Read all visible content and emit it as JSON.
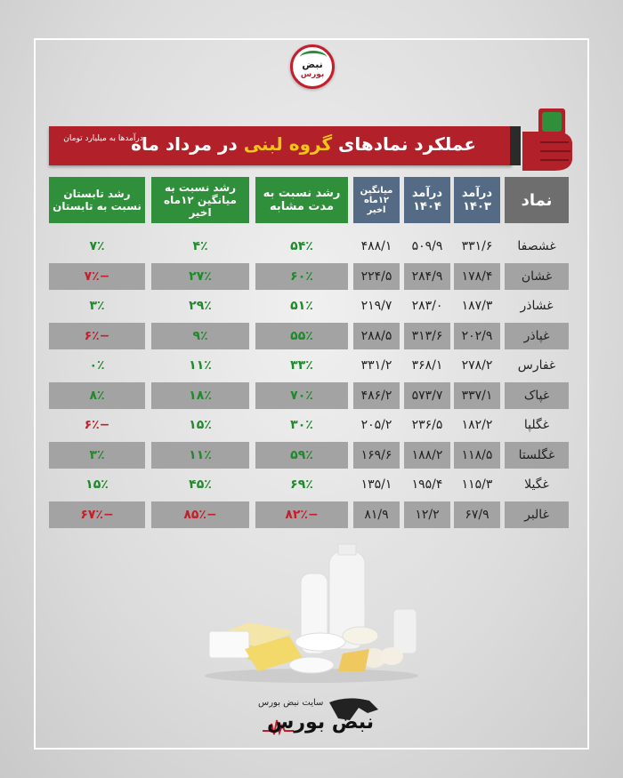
{
  "logo": {
    "line1": "نبض",
    "line2": "بورس"
  },
  "banner": {
    "title_before": "عملکرد نمادهای ",
    "title_highlight": "گروه لبنی",
    "title_after": " در مرداد ماه",
    "note": "درآمدها به میلیارد تومان"
  },
  "headers": {
    "symbol": "نماد",
    "income_1403": "درآمد\n۱۴۰۳",
    "income_1404": "درآمد\n۱۴۰۴",
    "avg_12": "میانگین\n۱۲ماه اخیر",
    "growth_same": "رشد نسبت به\nمدت مشابه",
    "growth_avg": "رشد نسبت به\nمیانگین ۱۲ماه اخیر",
    "growth_summer": "رشد تابستان\nنسبت به تابستان"
  },
  "rows": [
    {
      "symbol": "غشصفا",
      "inc1403": "۳۳۱/۶",
      "inc1404": "۵۰۹/۹",
      "avg": "۴۸۸/۱",
      "g_same": "۵۴٪",
      "g_avg": "۴٪",
      "g_summer": "۷٪",
      "summer_neg": false,
      "avg_neg": false,
      "same_neg": false
    },
    {
      "symbol": "غشان",
      "inc1403": "۱۷۸/۴",
      "inc1404": "۲۸۴/۹",
      "avg": "۲۲۴/۵",
      "g_same": "۶۰٪",
      "g_avg": "۲۷٪",
      "g_summer": "−۷٪",
      "summer_neg": true,
      "avg_neg": false,
      "same_neg": false
    },
    {
      "symbol": "غشاذر",
      "inc1403": "۱۸۷/۳",
      "inc1404": "۲۸۳/۰",
      "avg": "۲۱۹/۷",
      "g_same": "۵۱٪",
      "g_avg": "۲۹٪",
      "g_summer": "۳٪",
      "summer_neg": false,
      "avg_neg": false,
      "same_neg": false
    },
    {
      "symbol": "غپاذر",
      "inc1403": "۲۰۲/۹",
      "inc1404": "۳۱۳/۶",
      "avg": "۲۸۸/۵",
      "g_same": "۵۵٪",
      "g_avg": "۹٪",
      "g_summer": "−۶٪",
      "summer_neg": true,
      "avg_neg": false,
      "same_neg": false
    },
    {
      "symbol": "غفارس",
      "inc1403": "۲۷۸/۲",
      "inc1404": "۳۶۸/۱",
      "avg": "۳۳۱/۲",
      "g_same": "۳۳٪",
      "g_avg": "۱۱٪",
      "g_summer": "۰٪",
      "summer_neg": false,
      "avg_neg": false,
      "same_neg": false
    },
    {
      "symbol": "غپاک",
      "inc1403": "۳۳۷/۱",
      "inc1404": "۵۷۳/۷",
      "avg": "۴۸۶/۲",
      "g_same": "۷۰٪",
      "g_avg": "۱۸٪",
      "g_summer": "۸٪",
      "summer_neg": false,
      "avg_neg": false,
      "same_neg": false
    },
    {
      "symbol": "غگلپا",
      "inc1403": "۱۸۲/۲",
      "inc1404": "۲۳۶/۵",
      "avg": "۲۰۵/۲",
      "g_same": "۳۰٪",
      "g_avg": "۱۵٪",
      "g_summer": "−۶٪",
      "summer_neg": true,
      "avg_neg": false,
      "same_neg": false
    },
    {
      "symbol": "غگلستا",
      "inc1403": "۱۱۸/۵",
      "inc1404": "۱۸۸/۲",
      "avg": "۱۶۹/۶",
      "g_same": "۵۹٪",
      "g_avg": "۱۱٪",
      "g_summer": "۳٪",
      "summer_neg": false,
      "avg_neg": false,
      "same_neg": false
    },
    {
      "symbol": "غگیلا",
      "inc1403": "۱۱۵/۳",
      "inc1404": "۱۹۵/۴",
      "avg": "۱۳۵/۱",
      "g_same": "۶۹٪",
      "g_avg": "۴۵٪",
      "g_summer": "۱۵٪",
      "summer_neg": false,
      "avg_neg": false,
      "same_neg": false
    },
    {
      "symbol": "غالبر",
      "inc1403": "۶۷/۹",
      "inc1404": "۱۲/۲",
      "avg": "۸۱/۹",
      "g_same": "−۸۲٪",
      "g_avg": "−۸۵٪",
      "g_summer": "−۶۷٪",
      "summer_neg": true,
      "avg_neg": true,
      "same_neg": true
    }
  ],
  "footer": {
    "site": "سایت نبض بورس",
    "brand": "نبض بورس"
  },
  "colors": {
    "red": "#b2202a",
    "green": "#2f8f3a",
    "blue": "#556b85",
    "gold": "#f5c518"
  }
}
